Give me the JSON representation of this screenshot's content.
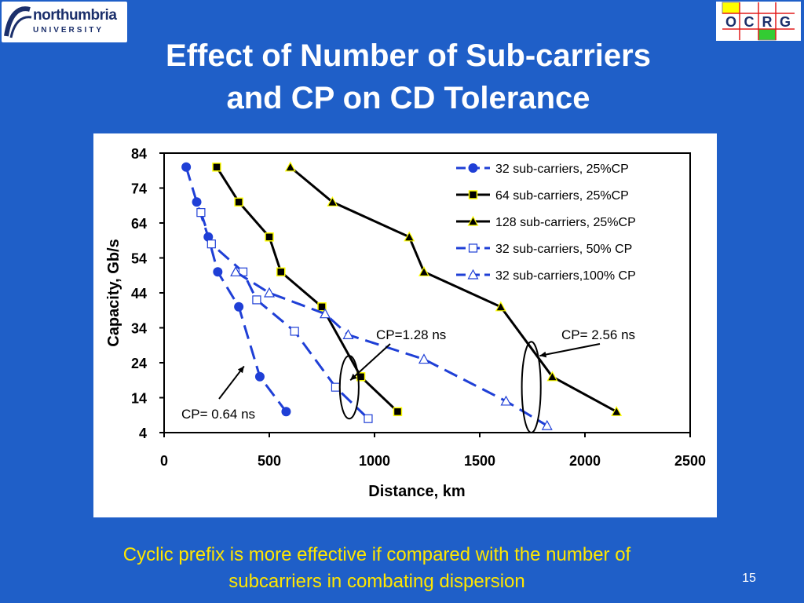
{
  "branding": {
    "university_name": "northumbria",
    "university_sub": "UNIVERSITY",
    "group_logo_letters": [
      "O",
      "C",
      "R",
      "G"
    ]
  },
  "slide": {
    "title_line1": "Effect of Number of Sub-carriers",
    "title_line2": "and CP on CD Tolerance",
    "caption_line1": "Cyclic prefix is more effective if compared with the number of",
    "caption_line2": "subcarriers in combating dispersion",
    "page_number": "15"
  },
  "colors": {
    "background": "#1f5fc8",
    "title_text": "#ffffff",
    "caption_text": "#ffe600",
    "series_blue": "#1f3fd6",
    "series_black": "#000000",
    "marker_fill_yellow": "#ffff00"
  },
  "chart_data": {
    "type": "line",
    "xlabel": "Distance,  km",
    "ylabel": "Capacity, Gb/s",
    "xlim": [
      0,
      2500
    ],
    "ylim": [
      4,
      84
    ],
    "xticks": [
      0,
      500,
      1000,
      1500,
      2000,
      2500
    ],
    "yticks": [
      4,
      14,
      24,
      34,
      44,
      54,
      64,
      74,
      84
    ],
    "grid": false,
    "legend_position": "top-right",
    "series": [
      {
        "name": "32 sub-carriers, 25%CP",
        "color": "#1f3fd6",
        "dash": true,
        "marker": "filled-circle",
        "points": [
          [
            105,
            80
          ],
          [
            155,
            70
          ],
          [
            210,
            60
          ],
          [
            255,
            50
          ],
          [
            355,
            40
          ],
          [
            455,
            20
          ],
          [
            580,
            10
          ]
        ]
      },
      {
        "name": "64 sub-carriers, 25%CP",
        "color": "#000000",
        "dash": false,
        "marker": "filled-square",
        "points": [
          [
            250,
            80
          ],
          [
            355,
            70
          ],
          [
            500,
            60
          ],
          [
            555,
            50
          ],
          [
            750,
            40
          ],
          [
            935,
            20
          ],
          [
            1110,
            10
          ]
        ]
      },
      {
        "name": "128 sub-carriers, 25%CP",
        "color": "#000000",
        "dash": false,
        "marker": "filled-triangle",
        "points": [
          [
            600,
            80
          ],
          [
            800,
            70
          ],
          [
            1165,
            60
          ],
          [
            1235,
            50
          ],
          [
            1600,
            40
          ],
          [
            1845,
            20
          ],
          [
            2150,
            10
          ]
        ]
      },
      {
        "name": "32 sub-carriers, 50% CP",
        "color": "#1f3fd6",
        "dash": true,
        "marker": "open-square",
        "points": [
          [
            175,
            67
          ],
          [
            225,
            58
          ],
          [
            375,
            50
          ],
          [
            440,
            42
          ],
          [
            620,
            33
          ],
          [
            815,
            17
          ],
          [
            970,
            8
          ]
        ]
      },
      {
        "name": "32 sub-carriers,100% CP",
        "color": "#1f3fd6",
        "dash": true,
        "marker": "open-triangle",
        "points": [
          [
            340,
            50
          ],
          [
            500,
            44
          ],
          [
            765,
            38
          ],
          [
            875,
            32
          ],
          [
            1235,
            25
          ],
          [
            1625,
            13
          ],
          [
            1820,
            6
          ]
        ]
      }
    ],
    "annotations": [
      {
        "text": "CP= 0.64 ns",
        "tip": [
          380,
          23
        ]
      },
      {
        "text": "CP=1.28 ns",
        "tip": [
          885,
          19
        ]
      },
      {
        "text": "CP= 2.56 ns",
        "tip": [
          1785,
          26
        ]
      }
    ],
    "ellipses": [
      {
        "cx": 880,
        "cy": 17,
        "rx": 45,
        "ry": 9
      },
      {
        "cx": 1745,
        "cy": 17,
        "rx": 45,
        "ry": 13
      }
    ]
  }
}
